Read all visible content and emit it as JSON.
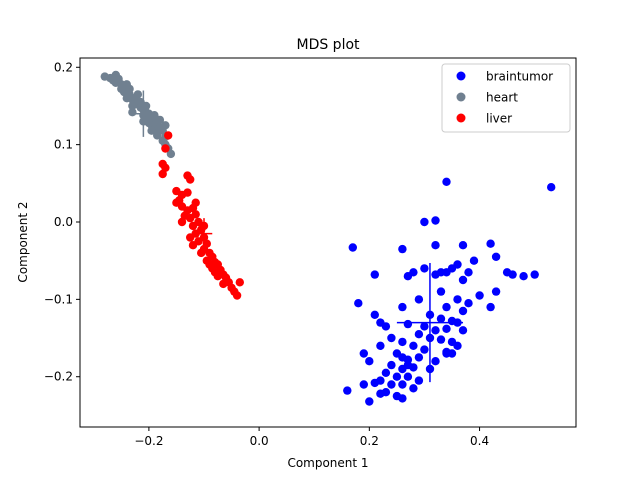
{
  "chart_data": {
    "type": "scatter",
    "title": "MDS plot",
    "xlabel": "Component 1",
    "ylabel": "Component 2",
    "xlim": [
      -0.325,
      0.575
    ],
    "ylim": [
      -0.265,
      0.212
    ],
    "xticks": [
      -0.2,
      0.0,
      0.2,
      0.4
    ],
    "xtick_labels": [
      "−0.2",
      "0.0",
      "0.2",
      "0.4"
    ],
    "yticks": [
      -0.2,
      -0.1,
      0.0,
      0.1,
      0.2
    ],
    "ytick_labels": [
      "−0.2",
      "−0.1",
      "0.0",
      "0.1",
      "0.2"
    ],
    "grid": false,
    "legend_position": "top-right",
    "series": [
      {
        "name": "braintumor",
        "color": "#0000ff",
        "centroid": [
          0.31,
          -0.13
        ],
        "cross_half_x": 0.06,
        "cross_half_y": 0.077,
        "points": [
          [
            0.53,
            0.045
          ],
          [
            0.34,
            0.052
          ],
          [
            0.32,
            0.002
          ],
          [
            0.3,
            0.0
          ],
          [
            0.32,
            -0.03
          ],
          [
            0.37,
            -0.03
          ],
          [
            0.42,
            -0.028
          ],
          [
            0.43,
            -0.045
          ],
          [
            0.26,
            -0.035
          ],
          [
            0.17,
            -0.033
          ],
          [
            0.39,
            -0.05
          ],
          [
            0.36,
            -0.055
          ],
          [
            0.3,
            -0.06
          ],
          [
            0.33,
            -0.065
          ],
          [
            0.32,
            -0.068
          ],
          [
            0.34,
            -0.065
          ],
          [
            0.35,
            -0.06
          ],
          [
            0.28,
            -0.065
          ],
          [
            0.27,
            -0.07
          ],
          [
            0.21,
            -0.068
          ],
          [
            0.38,
            -0.065
          ],
          [
            0.45,
            -0.065
          ],
          [
            0.46,
            -0.068
          ],
          [
            0.48,
            -0.07
          ],
          [
            0.5,
            -0.068
          ],
          [
            0.37,
            -0.075
          ],
          [
            0.43,
            -0.09
          ],
          [
            0.33,
            -0.09
          ],
          [
            0.4,
            -0.095
          ],
          [
            0.36,
            -0.1
          ],
          [
            0.38,
            -0.105
          ],
          [
            0.42,
            -0.11
          ],
          [
            0.29,
            -0.1
          ],
          [
            0.18,
            -0.105
          ],
          [
            0.26,
            -0.11
          ],
          [
            0.34,
            -0.11
          ],
          [
            0.37,
            -0.115
          ],
          [
            0.31,
            -0.12
          ],
          [
            0.21,
            -0.12
          ],
          [
            0.33,
            -0.125
          ],
          [
            0.35,
            -0.128
          ],
          [
            0.36,
            -0.13
          ],
          [
            0.22,
            -0.13
          ],
          [
            0.23,
            -0.135
          ],
          [
            0.27,
            -0.132
          ],
          [
            0.3,
            -0.135
          ],
          [
            0.32,
            -0.14
          ],
          [
            0.34,
            -0.138
          ],
          [
            0.37,
            -0.14
          ],
          [
            0.29,
            -0.145
          ],
          [
            0.24,
            -0.15
          ],
          [
            0.26,
            -0.155
          ],
          [
            0.31,
            -0.15
          ],
          [
            0.33,
            -0.152
          ],
          [
            0.35,
            -0.155
          ],
          [
            0.36,
            -0.16
          ],
          [
            0.22,
            -0.16
          ],
          [
            0.28,
            -0.16
          ],
          [
            0.3,
            -0.165
          ],
          [
            0.34,
            -0.168
          ],
          [
            0.35,
            -0.17
          ],
          [
            0.19,
            -0.17
          ],
          [
            0.25,
            -0.17
          ],
          [
            0.26,
            -0.175
          ],
          [
            0.27,
            -0.178
          ],
          [
            0.29,
            -0.175
          ],
          [
            0.32,
            -0.18
          ],
          [
            0.2,
            -0.18
          ],
          [
            0.24,
            -0.185
          ],
          [
            0.28,
            -0.188
          ],
          [
            0.31,
            -0.19
          ],
          [
            0.26,
            -0.19
          ],
          [
            0.23,
            -0.195
          ],
          [
            0.25,
            -0.2
          ],
          [
            0.27,
            -0.2
          ],
          [
            0.29,
            -0.205
          ],
          [
            0.22,
            -0.205
          ],
          [
            0.24,
            -0.21
          ],
          [
            0.26,
            -0.21
          ],
          [
            0.21,
            -0.208
          ],
          [
            0.19,
            -0.21
          ],
          [
            0.28,
            -0.215
          ],
          [
            0.23,
            -0.22
          ],
          [
            0.25,
            -0.225
          ],
          [
            0.16,
            -0.218
          ],
          [
            0.22,
            -0.222
          ],
          [
            0.2,
            -0.232
          ],
          [
            0.26,
            -0.228
          ],
          [
            0.34,
            -0.17
          ],
          [
            0.27,
            -0.185
          ]
        ]
      },
      {
        "name": "heart",
        "color": "#708090",
        "centroid": [
          -0.21,
          0.14
        ],
        "cross_half_x": 0.015,
        "cross_half_y": 0.03,
        "points": [
          [
            -0.28,
            0.188
          ],
          [
            -0.27,
            0.186
          ],
          [
            -0.26,
            0.19
          ],
          [
            -0.255,
            0.185
          ],
          [
            -0.26,
            0.18
          ],
          [
            -0.25,
            0.178
          ],
          [
            -0.245,
            0.175
          ],
          [
            -0.24,
            0.17
          ],
          [
            -0.235,
            0.165
          ],
          [
            -0.24,
            0.16
          ],
          [
            -0.23,
            0.158
          ],
          [
            -0.225,
            0.155
          ],
          [
            -0.22,
            0.152
          ],
          [
            -0.23,
            0.15
          ],
          [
            -0.215,
            0.148
          ],
          [
            -0.21,
            0.145
          ],
          [
            -0.205,
            0.142
          ],
          [
            -0.2,
            0.14
          ],
          [
            -0.21,
            0.138
          ],
          [
            -0.195,
            0.136
          ],
          [
            -0.2,
            0.133
          ],
          [
            -0.19,
            0.13
          ],
          [
            -0.185,
            0.128
          ],
          [
            -0.195,
            0.125
          ],
          [
            -0.18,
            0.122
          ],
          [
            -0.19,
            0.12
          ],
          [
            -0.175,
            0.118
          ],
          [
            -0.185,
            0.115
          ],
          [
            -0.17,
            0.11
          ],
          [
            -0.175,
            0.105
          ],
          [
            -0.17,
            0.1
          ],
          [
            -0.165,
            0.095
          ],
          [
            -0.16,
            0.088
          ],
          [
            -0.245,
            0.168
          ],
          [
            -0.235,
            0.172
          ],
          [
            -0.225,
            0.16
          ],
          [
            -0.215,
            0.155
          ],
          [
            -0.205,
            0.15
          ],
          [
            -0.2,
            0.128
          ],
          [
            -0.19,
            0.138
          ],
          [
            -0.18,
            0.132
          ],
          [
            -0.22,
            0.165
          ],
          [
            -0.25,
            0.172
          ],
          [
            -0.265,
            0.183
          ],
          [
            -0.24,
            0.178
          ],
          [
            -0.23,
            0.142
          ],
          [
            -0.21,
            0.13
          ],
          [
            -0.195,
            0.118
          ],
          [
            -0.185,
            0.112
          ],
          [
            -0.17,
            0.125
          ]
        ]
      },
      {
        "name": "liver",
        "color": "#ff0000",
        "centroid": [
          -0.1,
          -0.015
        ],
        "cross_half_x": 0.015,
        "cross_half_y": 0.02,
        "points": [
          [
            -0.165,
            0.112
          ],
          [
            -0.17,
            0.095
          ],
          [
            -0.175,
            0.075
          ],
          [
            -0.17,
            0.07
          ],
          [
            -0.175,
            0.062
          ],
          [
            -0.13,
            0.06
          ],
          [
            -0.125,
            0.055
          ],
          [
            -0.15,
            0.04
          ],
          [
            -0.14,
            0.035
          ],
          [
            -0.13,
            0.038
          ],
          [
            -0.145,
            0.028
          ],
          [
            -0.15,
            0.025
          ],
          [
            -0.14,
            0.02
          ],
          [
            -0.13,
            0.015
          ],
          [
            -0.12,
            0.018
          ],
          [
            -0.135,
            0.008
          ],
          [
            -0.125,
            0.005
          ],
          [
            -0.115,
            0.01
          ],
          [
            -0.11,
            0.0
          ],
          [
            -0.12,
            -0.005
          ],
          [
            -0.105,
            -0.01
          ],
          [
            -0.115,
            -0.015
          ],
          [
            -0.1,
            -0.02
          ],
          [
            -0.11,
            -0.025
          ],
          [
            -0.095,
            -0.028
          ],
          [
            -0.1,
            -0.035
          ],
          [
            -0.09,
            -0.04
          ],
          [
            -0.085,
            -0.045
          ],
          [
            -0.095,
            -0.05
          ],
          [
            -0.08,
            -0.052
          ],
          [
            -0.075,
            -0.055
          ],
          [
            -0.085,
            -0.06
          ],
          [
            -0.07,
            -0.062
          ],
          [
            -0.065,
            -0.068
          ],
          [
            -0.075,
            -0.07
          ],
          [
            -0.06,
            -0.072
          ],
          [
            -0.055,
            -0.078
          ],
          [
            -0.065,
            -0.08
          ],
          [
            -0.05,
            -0.085
          ],
          [
            -0.045,
            -0.09
          ],
          [
            -0.04,
            -0.095
          ],
          [
            -0.035,
            -0.078
          ],
          [
            -0.12,
            -0.03
          ],
          [
            -0.105,
            -0.04
          ],
          [
            -0.09,
            -0.055
          ],
          [
            -0.08,
            -0.065
          ],
          [
            -0.125,
            -0.02
          ],
          [
            -0.14,
            0.0
          ],
          [
            -0.115,
            0.025
          ],
          [
            -0.1,
            -0.005
          ]
        ]
      }
    ]
  }
}
